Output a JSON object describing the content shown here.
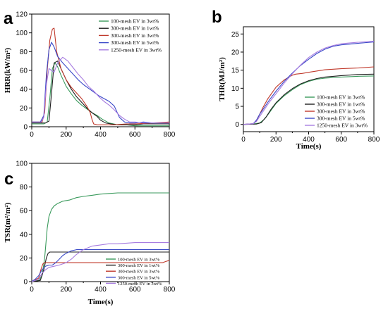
{
  "colors": {
    "green": "#3a9a5c",
    "black": "#1f1f1f",
    "red": "#c0392b",
    "blue": "#3a49c8",
    "purple": "#a77ce0"
  },
  "chart_data": [
    {
      "panel": "a",
      "type": "line",
      "title": "",
      "xlabel": "",
      "ylabel": "HRR(kW/m²)",
      "xlim": [
        0,
        800
      ],
      "ylim": [
        0,
        120
      ],
      "xticks": [
        0,
        200,
        400,
        600,
        800
      ],
      "yticks": [
        0,
        20,
        40,
        60,
        80,
        100,
        120
      ],
      "legend_position": "top-right",
      "series": [
        {
          "name": "100-mesh EV in 3wt%",
          "color": "green",
          "x": [
            0,
            70,
            90,
            105,
            120,
            135,
            150,
            170,
            200,
            230,
            260,
            290,
            320,
            350,
            380,
            410,
            450,
            500,
            550,
            600,
            650,
            700,
            750,
            800
          ],
          "y": [
            3,
            3,
            5,
            30,
            62,
            68,
            64,
            55,
            43,
            35,
            28,
            23,
            19,
            15,
            12,
            8,
            4,
            2,
            2,
            1,
            1,
            1,
            1,
            1
          ]
        },
        {
          "name": "300-mesh EV in 1wt%",
          "color": "black",
          "x": [
            0,
            80,
            100,
            115,
            130,
            150,
            170,
            200,
            230,
            260,
            290,
            320,
            350,
            380,
            400,
            430,
            460,
            500,
            550,
            600,
            650,
            700,
            750,
            800
          ],
          "y": [
            4,
            4,
            6,
            35,
            68,
            70,
            62,
            50,
            40,
            32,
            26,
            20,
            15,
            11,
            7,
            4,
            3,
            2,
            2,
            2,
            3,
            3,
            3,
            3
          ]
        },
        {
          "name": "300-mesh EV in 3wt%",
          "color": "red",
          "x": [
            0,
            60,
            75,
            90,
            105,
            120,
            130,
            145,
            170,
            200,
            230,
            260,
            290,
            320,
            340,
            350,
            360,
            380,
            420,
            480,
            550,
            600,
            700,
            800
          ],
          "y": [
            5,
            5,
            15,
            60,
            92,
            104,
            105,
            80,
            62,
            50,
            42,
            36,
            30,
            22,
            15,
            8,
            3,
            2,
            2,
            2,
            3,
            3,
            4,
            5
          ]
        },
        {
          "name": "300-mesh EV in 5wt%",
          "color": "blue",
          "x": [
            0,
            50,
            70,
            85,
            100,
            115,
            130,
            150,
            180,
            210,
            240,
            270,
            300,
            330,
            360,
            390,
            420,
            450,
            480,
            510,
            540,
            570,
            600,
            650,
            700,
            800
          ],
          "y": [
            5,
            5,
            12,
            55,
            82,
            90,
            85,
            75,
            68,
            62,
            56,
            50,
            45,
            41,
            37,
            33,
            30,
            27,
            22,
            10,
            5,
            4,
            4,
            5,
            4,
            4
          ]
        },
        {
          "name": "1250-mesh EV in 3wt%",
          "color": "purple",
          "x": [
            0,
            55,
            70,
            85,
            100,
            115,
            130,
            150,
            180,
            210,
            240,
            270,
            300,
            330,
            360,
            390,
            420,
            450,
            480,
            510,
            540,
            570,
            600,
            650,
            700,
            800
          ],
          "y": [
            5,
            5,
            10,
            45,
            62,
            60,
            58,
            68,
            74,
            70,
            63,
            56,
            50,
            43,
            38,
            32,
            27,
            23,
            18,
            12,
            8,
            5,
            5,
            4,
            4,
            4
          ]
        }
      ]
    },
    {
      "panel": "b",
      "type": "line",
      "title": "",
      "xlabel": "Time(s)",
      "ylabel": "THR(MJ/m²)",
      "xlim": [
        0,
        800
      ],
      "ylim": [
        -2,
        27
      ],
      "xticks": [
        0,
        200,
        400,
        600,
        800
      ],
      "yticks": [
        0,
        5,
        10,
        15,
        20,
        25
      ],
      "legend_position": "bottom-right",
      "series": [
        {
          "name": "100-mesh EV in 3wt%",
          "color": "green",
          "x": [
            0,
            60,
            100,
            130,
            160,
            200,
            250,
            300,
            350,
            400,
            450,
            500,
            600,
            700,
            800
          ],
          "y": [
            0,
            0.1,
            0.4,
            1.5,
            3.3,
            5.8,
            7.9,
            9.6,
            11.0,
            11.9,
            12.5,
            12.8,
            13.1,
            13.3,
            13.4
          ]
        },
        {
          "name": "300-mesh EV in 1wt%",
          "color": "black",
          "x": [
            0,
            80,
            110,
            140,
            170,
            200,
            250,
            300,
            350,
            400,
            450,
            500,
            600,
            700,
            800
          ],
          "y": [
            0,
            0.1,
            0.5,
            2.1,
            4.2,
            6.0,
            8.2,
            9.9,
            11.2,
            12.1,
            12.7,
            13.1,
            13.5,
            13.8,
            13.9
          ]
        },
        {
          "name": "300-mesh EV in 3wt%",
          "color": "red",
          "x": [
            0,
            60,
            80,
            100,
            120,
            150,
            200,
            250,
            300,
            320,
            360,
            400,
            500,
            600,
            700,
            800
          ],
          "y": [
            0,
            0.2,
            1.0,
            2.8,
            4.7,
            7.1,
            10.3,
            12.3,
            13.6,
            13.9,
            14.1,
            14.4,
            15.1,
            15.4,
            15.6,
            15.9
          ]
        },
        {
          "name": "300-mesh EV in 5wt%",
          "color": "blue",
          "x": [
            0,
            60,
            80,
            100,
            130,
            160,
            200,
            250,
            300,
            350,
            400,
            450,
            500,
            550,
            600,
            650,
            700,
            800
          ],
          "y": [
            0,
            0.2,
            1.2,
            2.8,
            4.8,
            6.8,
            9.2,
            11.9,
            14.2,
            16.3,
            18.0,
            19.6,
            20.8,
            21.6,
            22.0,
            22.2,
            22.4,
            22.8
          ]
        },
        {
          "name": "1250-mesh EV in 3wt%",
          "color": "purple",
          "x": [
            0,
            60,
            80,
            100,
            130,
            160,
            200,
            250,
            300,
            350,
            400,
            450,
            500,
            550,
            600,
            650,
            700,
            800
          ],
          "y": [
            0,
            0.2,
            0.8,
            2.2,
            4.2,
            6.2,
            8.5,
            11.4,
            14.0,
            16.4,
            18.5,
            20.0,
            21.1,
            21.8,
            22.3,
            22.5,
            22.7,
            23.0
          ]
        }
      ]
    },
    {
      "panel": "c",
      "type": "line",
      "title": "",
      "xlabel": "Time(s)",
      "ylabel": "TSR(m²/m²)",
      "xlim": [
        0,
        800
      ],
      "ylim": [
        0,
        100
      ],
      "xticks": [
        0,
        200,
        400,
        600,
        800
      ],
      "yticks": [
        0,
        20,
        40,
        60,
        80,
        100
      ],
      "legend_position": "bottom-right",
      "series": [
        {
          "name": "100-mesh EV in 3wt%",
          "color": "green",
          "x": [
            0,
            40,
            60,
            75,
            90,
            100,
            115,
            130,
            150,
            180,
            220,
            260,
            300,
            350,
            400,
            450,
            500,
            550,
            600,
            700,
            800
          ],
          "y": [
            0,
            1,
            5,
            20,
            45,
            55,
            61,
            64,
            66,
            68,
            69,
            71,
            72,
            73,
            74,
            74.5,
            75,
            75,
            75,
            75,
            75
          ]
        },
        {
          "name": "300-mesh EV in 1wt%",
          "color": "black",
          "x": [
            0,
            50,
            70,
            85,
            95,
            105,
            120,
            150,
            200,
            300,
            400,
            500,
            600,
            700,
            800
          ],
          "y": [
            0,
            1,
            10,
            20,
            24,
            25,
            25,
            25,
            25,
            25,
            25,
            25,
            25,
            25,
            25
          ]
        },
        {
          "name": "300-mesh EV in 3wt%",
          "color": "red",
          "x": [
            0,
            40,
            55,
            65,
            75,
            90,
            120,
            200,
            300,
            400,
            500,
            600,
            700,
            760,
            780,
            800
          ],
          "y": [
            0,
            3,
            11,
            15,
            16,
            16,
            16,
            16,
            16,
            16,
            16,
            16,
            16,
            16,
            17,
            18
          ]
        },
        {
          "name": "300-mesh EV in 5wt%",
          "color": "blue",
          "x": [
            0,
            20,
            40,
            60,
            80,
            100,
            120,
            140,
            160,
            180,
            200,
            230,
            260,
            300,
            400,
            500,
            600,
            700,
            800
          ],
          "y": [
            0,
            2,
            5,
            10,
            13,
            14,
            14,
            16,
            19,
            22,
            24,
            26,
            27,
            27,
            27,
            27,
            27,
            27,
            27
          ]
        },
        {
          "name": "1250-mesh EV in 3wt%",
          "color": "purple",
          "x": [
            0,
            40,
            60,
            80,
            100,
            130,
            160,
            200,
            230,
            260,
            300,
            350,
            400,
            450,
            500,
            550,
            600,
            650,
            700,
            800
          ],
          "y": [
            0,
            2,
            7,
            10,
            12,
            13,
            14,
            16,
            19,
            23,
            27,
            30,
            31,
            32,
            32,
            32.5,
            33,
            33,
            33,
            33
          ]
        }
      ]
    }
  ]
}
